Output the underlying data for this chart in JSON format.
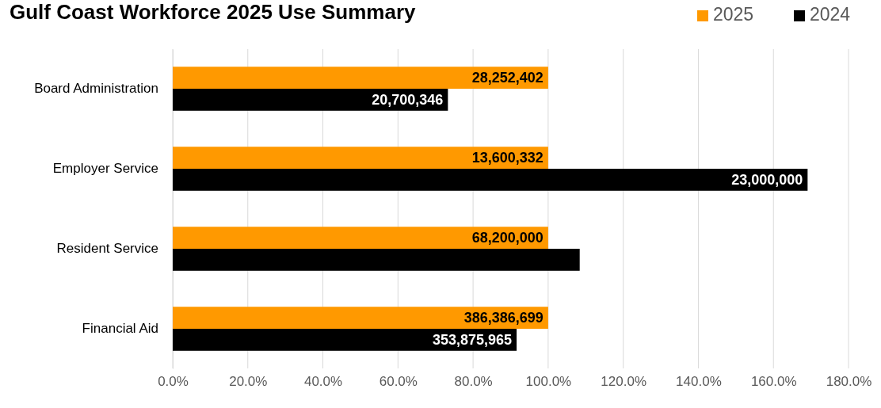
{
  "chart_data": {
    "type": "bar",
    "orientation": "horizontal",
    "title": "Gulf Coast Workforce 2025 Use Summary",
    "categories": [
      "Board Administration",
      "Employer Service",
      "Resident Service",
      "Financial Aid"
    ],
    "series": [
      {
        "name": "2025",
        "color": "#ff9900",
        "values": [
          100,
          100,
          100,
          100
        ]
      },
      {
        "name": "2024",
        "color": "#000000",
        "values": [
          73.3,
          169.1,
          108.4,
          91.6
        ]
      }
    ],
    "annotations": [
      {
        "text": "28,252,402",
        "x": 100,
        "y": "Board Administration"
      },
      {
        "text": "20,700,346",
        "x": 73.3,
        "y": "Board Administration"
      },
      {
        "text": "13,600,332",
        "x": 100,
        "y": "Employer Service"
      },
      {
        "text": "23,000,000",
        "x": 169.1,
        "y": "Employer Service"
      },
      {
        "text": "68,200,000",
        "x": 100,
        "y": "Resident Service"
      },
      {
        "text": "386,386,699",
        "x": 100,
        "y": "Financial Aid"
      },
      {
        "text": "353,875,965",
        "x": 91.6,
        "y": "Financial Aid"
      }
    ],
    "xlim": [
      0,
      180
    ],
    "xticks": [
      {
        "value": 0,
        "label": "0.0%"
      },
      {
        "value": 20,
        "label": "20.0%"
      },
      {
        "value": 40,
        "label": "40.0%"
      },
      {
        "value": 60,
        "label": "60.0%"
      },
      {
        "value": 80,
        "label": "80.0%"
      },
      {
        "value": 100,
        "label": "100.0%"
      },
      {
        "value": 120,
        "label": "120.0%"
      },
      {
        "value": 140,
        "label": "140.0%"
      },
      {
        "value": 160,
        "label": "160.0%"
      },
      {
        "value": 180,
        "label": "180.0%"
      }
    ],
    "grid": "x",
    "legend": "top right"
  }
}
